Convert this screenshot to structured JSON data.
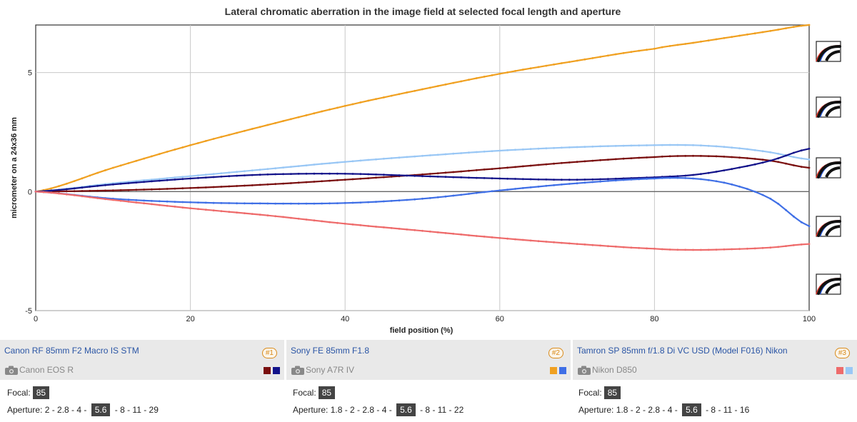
{
  "chart_data": {
    "type": "line",
    "title": "Lateral chromatic aberration in the image field at selected focal length and aperture",
    "xlabel": "field position (%)",
    "ylabel": "micrometer on a 24x36 mm",
    "xlim": [
      0,
      100
    ],
    "ylim": [
      -5,
      7
    ],
    "xticks": [
      0,
      20,
      40,
      60,
      80,
      100
    ],
    "yticks": [
      -5,
      0,
      5
    ],
    "x": [
      0,
      10,
      20,
      30,
      40,
      50,
      60,
      70,
      80,
      85,
      90,
      95,
      100
    ],
    "series": [
      {
        "name": "Sony FE 85mm F1.8 (1)",
        "color": "#f0a020",
        "values": [
          0,
          1.0,
          1.95,
          2.8,
          3.6,
          4.3,
          4.95,
          5.5,
          6.0,
          6.25,
          6.5,
          6.75,
          7.0
        ]
      },
      {
        "name": "Tamron SP 85mm (2)",
        "color": "#99c7f5",
        "values": [
          0,
          0.35,
          0.65,
          0.95,
          1.25,
          1.5,
          1.72,
          1.87,
          1.95,
          1.95,
          1.85,
          1.65,
          1.35
        ]
      },
      {
        "name": "Canon RF 85mm (1)",
        "color": "#7a0f0f",
        "values": [
          0,
          0.05,
          0.15,
          0.3,
          0.5,
          0.72,
          0.98,
          1.25,
          1.45,
          1.5,
          1.45,
          1.3,
          1.0
        ]
      },
      {
        "name": "Canon RF 85mm (2)",
        "color": "#13138a",
        "values": [
          0,
          0.3,
          0.55,
          0.72,
          0.75,
          0.65,
          0.55,
          0.5,
          0.6,
          0.7,
          0.95,
          1.3,
          1.8
        ]
      },
      {
        "name": "Sony FE 85mm F1.8 (2)",
        "color": "#3f6fe6",
        "values": [
          0,
          -0.3,
          -0.45,
          -0.5,
          -0.48,
          -0.3,
          0.05,
          0.35,
          0.55,
          0.55,
          0.3,
          -0.3,
          -1.45
        ]
      },
      {
        "name": "Tamron SP 85mm (1)",
        "color": "#ee6b6b",
        "values": [
          0,
          -0.35,
          -0.7,
          -1.0,
          -1.35,
          -1.65,
          -1.95,
          -2.2,
          -2.4,
          -2.45,
          -2.42,
          -2.35,
          -2.2
        ]
      }
    ]
  },
  "lenses": [
    {
      "name": "Canon RF 85mm F2 Macro IS STM",
      "number": "#1",
      "camera": "Canon EOS R",
      "colors": [
        "#7a0f0f",
        "#13138a"
      ]
    },
    {
      "name": "Sony FE 85mm F1.8",
      "number": "#2",
      "camera": "Sony A7R IV",
      "colors": [
        "#f0a020",
        "#3f6fe6"
      ]
    },
    {
      "name": "Tamron SP 85mm f/1.8 Di VC USD (Model F016) Nikon",
      "number": "#3",
      "camera": "Nikon D850",
      "colors": [
        "#ee6b6b",
        "#99c7f5"
      ]
    }
  ],
  "settings": [
    {
      "focal_label": "Focal:",
      "focal_value": "85",
      "aperture_label": "Aperture: ",
      "aperture_before": "2 - 2.8 - 4 - ",
      "aperture_selected": "5.6",
      "aperture_after": " - 8 - 11 - 29"
    },
    {
      "focal_label": "Focal:",
      "focal_value": "85",
      "aperture_label": "Aperture: ",
      "aperture_before": "1.8 - 2 - 2.8 - 4 - ",
      "aperture_selected": "5.6",
      "aperture_after": " - 8 - 11 - 22"
    },
    {
      "focal_label": "Focal:",
      "focal_value": "85",
      "aperture_label": "Aperture: ",
      "aperture_before": "1.8 - 2 - 2.8 - 4 - ",
      "aperture_selected": "5.6",
      "aperture_after": " - 8 - 11 - 16"
    }
  ],
  "side_icons": [
    "aberration-sample-icon",
    "aberration-sample-icon",
    "aberration-sample-icon",
    "aberration-sample-icon",
    "aberration-sample-icon"
  ]
}
